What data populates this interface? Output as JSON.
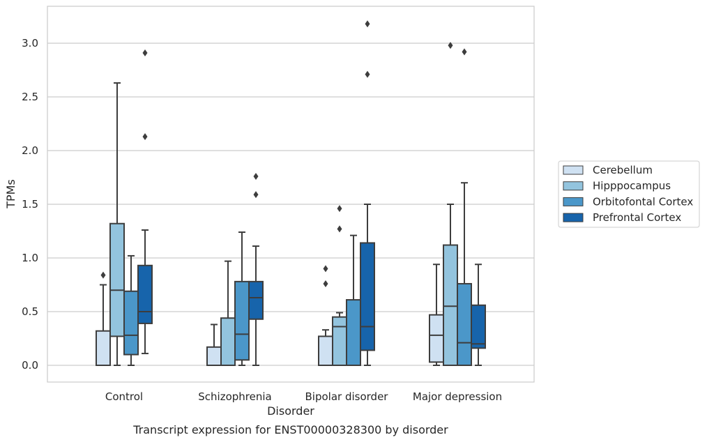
{
  "chart_data": {
    "type": "box",
    "title": "",
    "caption": "Transcript expression for ENST00000328300 by disorder",
    "xlabel": "Disorder",
    "ylabel": "TPMs",
    "ylim": [
      -0.15,
      3.35
    ],
    "yticks": [
      0.0,
      0.5,
      1.0,
      1.5,
      2.0,
      2.5,
      3.0
    ],
    "ytick_labels": [
      "0.0",
      "0.5",
      "1.0",
      "1.5",
      "2.0",
      "2.5",
      "3.0"
    ],
    "categories": [
      "Control",
      "Schizophrenia",
      "Bipolar disorder",
      "Major depression"
    ],
    "grid": "horizontal",
    "legend_position": "right",
    "series": [
      {
        "name": "Cerebellum",
        "color": "#cfe1f2",
        "boxes": [
          {
            "low": 0.0,
            "q1": 0.0,
            "median": 0.0,
            "q3": 0.32,
            "high": 0.75,
            "outliers": [
              0.84
            ]
          },
          {
            "low": 0.0,
            "q1": 0.0,
            "median": 0.0,
            "q3": 0.17,
            "high": 0.38,
            "outliers": []
          },
          {
            "low": 0.0,
            "q1": 0.0,
            "median": 0.0,
            "q3": 0.27,
            "high": 0.33,
            "outliers": [
              0.76,
              0.9
            ]
          },
          {
            "low": 0.0,
            "q1": 0.03,
            "median": 0.28,
            "q3": 0.47,
            "high": 0.94,
            "outliers": []
          }
        ]
      },
      {
        "name": "Hipppocampus",
        "color": "#93c4de",
        "boxes": [
          {
            "low": 0.0,
            "q1": 0.27,
            "median": 0.7,
            "q3": 1.32,
            "high": 2.63,
            "outliers": []
          },
          {
            "low": 0.0,
            "q1": 0.0,
            "median": 0.0,
            "q3": 0.44,
            "high": 0.97,
            "outliers": []
          },
          {
            "low": 0.0,
            "q1": 0.0,
            "median": 0.36,
            "q3": 0.45,
            "high": 0.49,
            "outliers": [
              1.27,
              1.46
            ]
          },
          {
            "low": 0.0,
            "q1": 0.0,
            "median": 0.55,
            "q3": 1.12,
            "high": 1.5,
            "outliers": [
              2.98
            ]
          }
        ]
      },
      {
        "name": "Orbitofontal Cortex",
        "color": "#4b97c9",
        "boxes": [
          {
            "low": 0.0,
            "q1": 0.1,
            "median": 0.28,
            "q3": 0.69,
            "high": 1.02,
            "outliers": []
          },
          {
            "low": 0.0,
            "q1": 0.05,
            "median": 0.29,
            "q3": 0.78,
            "high": 1.24,
            "outliers": []
          },
          {
            "low": 0.0,
            "q1": 0.0,
            "median": 0.0,
            "q3": 0.61,
            "high": 1.21,
            "outliers": []
          },
          {
            "low": 0.0,
            "q1": 0.0,
            "median": 0.21,
            "q3": 0.76,
            "high": 1.7,
            "outliers": [
              2.92
            ]
          }
        ]
      },
      {
        "name": "Prefrontal Cortex",
        "color": "#1764ab",
        "boxes": [
          {
            "low": 0.11,
            "q1": 0.39,
            "median": 0.5,
            "q3": 0.93,
            "high": 1.26,
            "outliers": [
              2.13,
              2.91
            ]
          },
          {
            "low": 0.0,
            "q1": 0.43,
            "median": 0.63,
            "q3": 0.78,
            "high": 1.11,
            "outliers": [
              1.59,
              1.76
            ]
          },
          {
            "low": 0.0,
            "q1": 0.14,
            "median": 0.36,
            "q3": 1.14,
            "high": 1.5,
            "outliers": [
              2.71,
              3.18
            ]
          },
          {
            "low": 0.0,
            "q1": 0.16,
            "median": 0.2,
            "q3": 0.56,
            "high": 0.94,
            "outliers": []
          }
        ]
      }
    ],
    "colors": {
      "line": "#3d3d3d",
      "grid": "#cccccc",
      "frame": "#cccccc"
    }
  }
}
